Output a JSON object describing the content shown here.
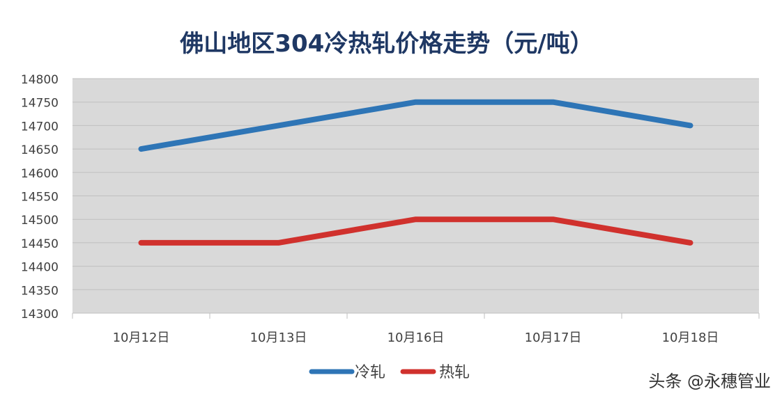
{
  "chart_data": {
    "type": "line",
    "title": "佛山地区304冷热轧价格走势（元/吨）",
    "categories": [
      "10月12日",
      "10月13日",
      "10月16日",
      "10月17日",
      "10月18日"
    ],
    "series": [
      {
        "name": "冷轧",
        "values": [
          14650,
          14700,
          14750,
          14750,
          14700
        ],
        "color": "#2e75b6"
      },
      {
        "name": "热轧",
        "values": [
          14450,
          14450,
          14500,
          14500,
          14450
        ],
        "color": "#d0312d"
      }
    ],
    "ylim": [
      14300,
      14800
    ],
    "yticks": [
      14300,
      14350,
      14400,
      14450,
      14500,
      14550,
      14600,
      14650,
      14700,
      14750,
      14800
    ],
    "grid": true,
    "legend_position": "bottom",
    "plot_background": "#d9d9d9",
    "gridline_color": "#bfbfbf"
  },
  "watermark": {
    "text": "头条 @永穗管业"
  }
}
